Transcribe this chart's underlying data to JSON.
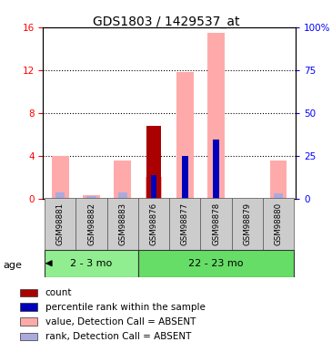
{
  "title": "GDS1803 / 1429537_at",
  "samples": [
    "GSM98881",
    "GSM98882",
    "GSM98883",
    "GSM98876",
    "GSM98877",
    "GSM98878",
    "GSM98879",
    "GSM98880"
  ],
  "groups": [
    {
      "label": "2 - 3 mo",
      "indices": [
        0,
        1,
        2
      ],
      "color": "#90ee90"
    },
    {
      "label": "22 - 23 mo",
      "indices": [
        3,
        4,
        5,
        6,
        7
      ],
      "color": "#66dd66"
    }
  ],
  "value_absent": [
    4.0,
    0.3,
    3.5,
    2.0,
    11.8,
    15.5,
    0.0,
    3.5
  ],
  "rank_absent_height": [
    0.55,
    0.18,
    0.55,
    0.0,
    0.0,
    0.0,
    0.0,
    0.45
  ],
  "count_value": [
    0.0,
    0.0,
    0.0,
    6.8,
    0.0,
    0.0,
    0.0,
    0.0
  ],
  "percentile_rank": [
    0.0,
    0.0,
    0.0,
    2.2,
    4.0,
    5.5,
    0.0,
    0.0
  ],
  "ylim_left": [
    0,
    16
  ],
  "ylim_right": [
    0,
    100
  ],
  "yticks_left": [
    0,
    4,
    8,
    12,
    16
  ],
  "yticks_right": [
    0,
    25,
    50,
    75,
    100
  ],
  "ytick_labels_right": [
    "0",
    "25",
    "50",
    "75",
    "100%"
  ],
  "color_count": "#aa0000",
  "color_percentile": "#0000bb",
  "color_value_absent": "#ffaaaa",
  "color_rank_absent": "#aaaadd",
  "age_label": "age",
  "legend_items": [
    {
      "color": "#aa0000",
      "label": "count"
    },
    {
      "color": "#0000bb",
      "label": "percentile rank within the sample"
    },
    {
      "color": "#ffaaaa",
      "label": "value, Detection Call = ABSENT"
    },
    {
      "color": "#aaaadd",
      "label": "rank, Detection Call = ABSENT"
    }
  ]
}
